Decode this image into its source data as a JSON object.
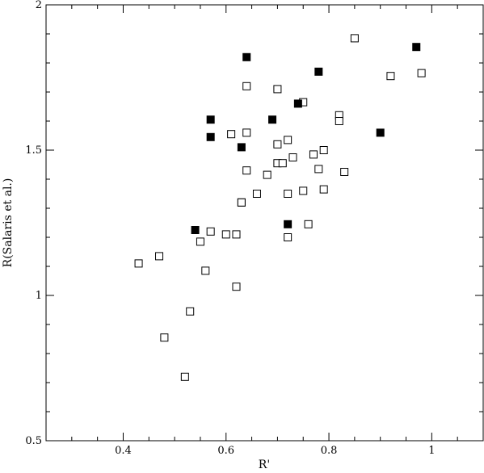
{
  "chart_data": {
    "type": "scatter",
    "title": "",
    "xlabel": "R'",
    "ylabel": "R(Salaris et  al.)",
    "xlim": [
      0.25,
      1.1
    ],
    "ylim": [
      0.5,
      2.0
    ],
    "x_ticks": [
      0.4,
      0.6,
      0.8,
      1.0
    ],
    "x_tick_labels": [
      "0.4",
      "0.6",
      "0.8",
      "1"
    ],
    "y_ticks": [
      0.5,
      1.0,
      1.5,
      2.0
    ],
    "y_tick_labels": [
      "0.5",
      "1",
      "1.5",
      "2"
    ],
    "x_minor_step": 0.05,
    "y_minor_step": 0.1,
    "grid": false,
    "series": [
      {
        "marker": "open-square",
        "points": [
          [
            0.43,
            1.11
          ],
          [
            0.47,
            1.135
          ],
          [
            0.48,
            0.855
          ],
          [
            0.52,
            0.72
          ],
          [
            0.53,
            0.945
          ],
          [
            0.55,
            1.185
          ],
          [
            0.56,
            1.085
          ],
          [
            0.57,
            1.22
          ],
          [
            0.6,
            1.21
          ],
          [
            0.62,
            1.21
          ],
          [
            0.62,
            1.03
          ],
          [
            0.61,
            1.555
          ],
          [
            0.63,
            1.32
          ],
          [
            0.63,
            1.32
          ],
          [
            0.64,
            1.72
          ],
          [
            0.64,
            1.56
          ],
          [
            0.64,
            1.43
          ],
          [
            0.66,
            1.35
          ],
          [
            0.68,
            1.415
          ],
          [
            0.7,
            1.52
          ],
          [
            0.7,
            1.71
          ],
          [
            0.7,
            1.455
          ],
          [
            0.71,
            1.455
          ],
          [
            0.72,
            1.535
          ],
          [
            0.72,
            1.35
          ],
          [
            0.72,
            1.2
          ],
          [
            0.73,
            1.475
          ],
          [
            0.75,
            1.665
          ],
          [
            0.75,
            1.36
          ],
          [
            0.76,
            1.245
          ],
          [
            0.77,
            1.485
          ],
          [
            0.78,
            1.435
          ],
          [
            0.79,
            1.5
          ],
          [
            0.79,
            1.365
          ],
          [
            0.82,
            1.62
          ],
          [
            0.82,
            1.6
          ],
          [
            0.83,
            1.425
          ],
          [
            0.85,
            1.885
          ],
          [
            0.92,
            1.755
          ],
          [
            0.98,
            1.765
          ]
        ]
      },
      {
        "marker": "filled-square",
        "points": [
          [
            0.54,
            1.225
          ],
          [
            0.57,
            1.605
          ],
          [
            0.57,
            1.545
          ],
          [
            0.63,
            1.51
          ],
          [
            0.64,
            1.82
          ],
          [
            0.69,
            1.605
          ],
          [
            0.72,
            1.245
          ],
          [
            0.74,
            1.66
          ],
          [
            0.78,
            1.77
          ],
          [
            0.9,
            1.56
          ],
          [
            0.97,
            1.855
          ]
        ]
      }
    ]
  }
}
